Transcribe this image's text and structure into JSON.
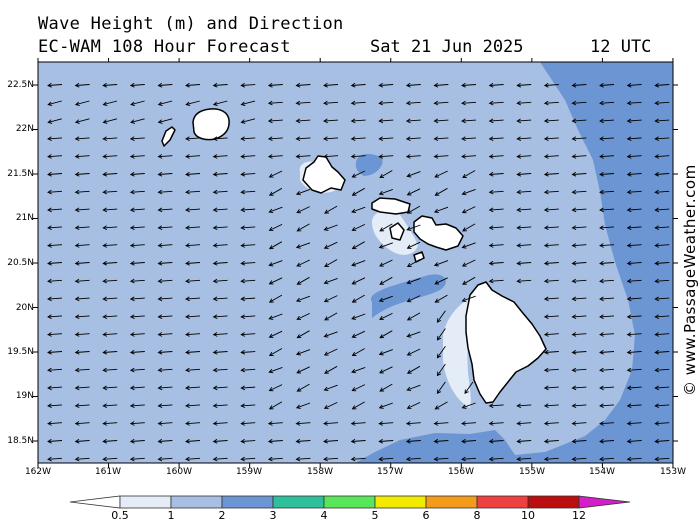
{
  "header": {
    "title_line1": "Wave Height (m) and Direction",
    "title_line2": "EC-WAM 108 Hour Forecast",
    "date": "Sat 21 Jun 2025",
    "time": "12 UTC"
  },
  "credit": "© www.PassageWeather.com",
  "map": {
    "latitudes": [
      "22.5N",
      "22N",
      "21.5N",
      "21N",
      "20.5N",
      "20N",
      "19.5N",
      "19N",
      "18.5N"
    ],
    "longitudes": [
      "162W",
      "161W",
      "160W",
      "159W",
      "158W",
      "157W",
      "156W",
      "155W",
      "154W",
      "153W"
    ],
    "lat_range": [
      18.25,
      22.75
    ],
    "lon_range": [
      -162,
      -153
    ],
    "wave_direction": "from east-northeast (arrows point west)",
    "islands": [
      "Niihau",
      "Kauai",
      "Oahu",
      "Molokai",
      "Lanai",
      "Maui",
      "Kahoolawe",
      "Hawaii"
    ]
  },
  "colorbar": {
    "labels": [
      "0.5",
      "1",
      "2",
      "3",
      "4",
      "5",
      "6",
      "8",
      "10",
      "12"
    ],
    "colors": [
      "#e4ecf7",
      "#a7bfe2",
      "#6c96d3",
      "#2fbf9a",
      "#5ae65a",
      "#f2ea00",
      "#f39b1b",
      "#ee4040",
      "#bb0e0e",
      "#d21fc8"
    ],
    "unit": "m"
  },
  "colors": {
    "band_below_0_5": "#e4ecf7",
    "band_0_5_to_1": "#a7bfe2",
    "band_1_to_2": "#6c96d3",
    "land": "#ffffff",
    "arrow": "#000000"
  }
}
